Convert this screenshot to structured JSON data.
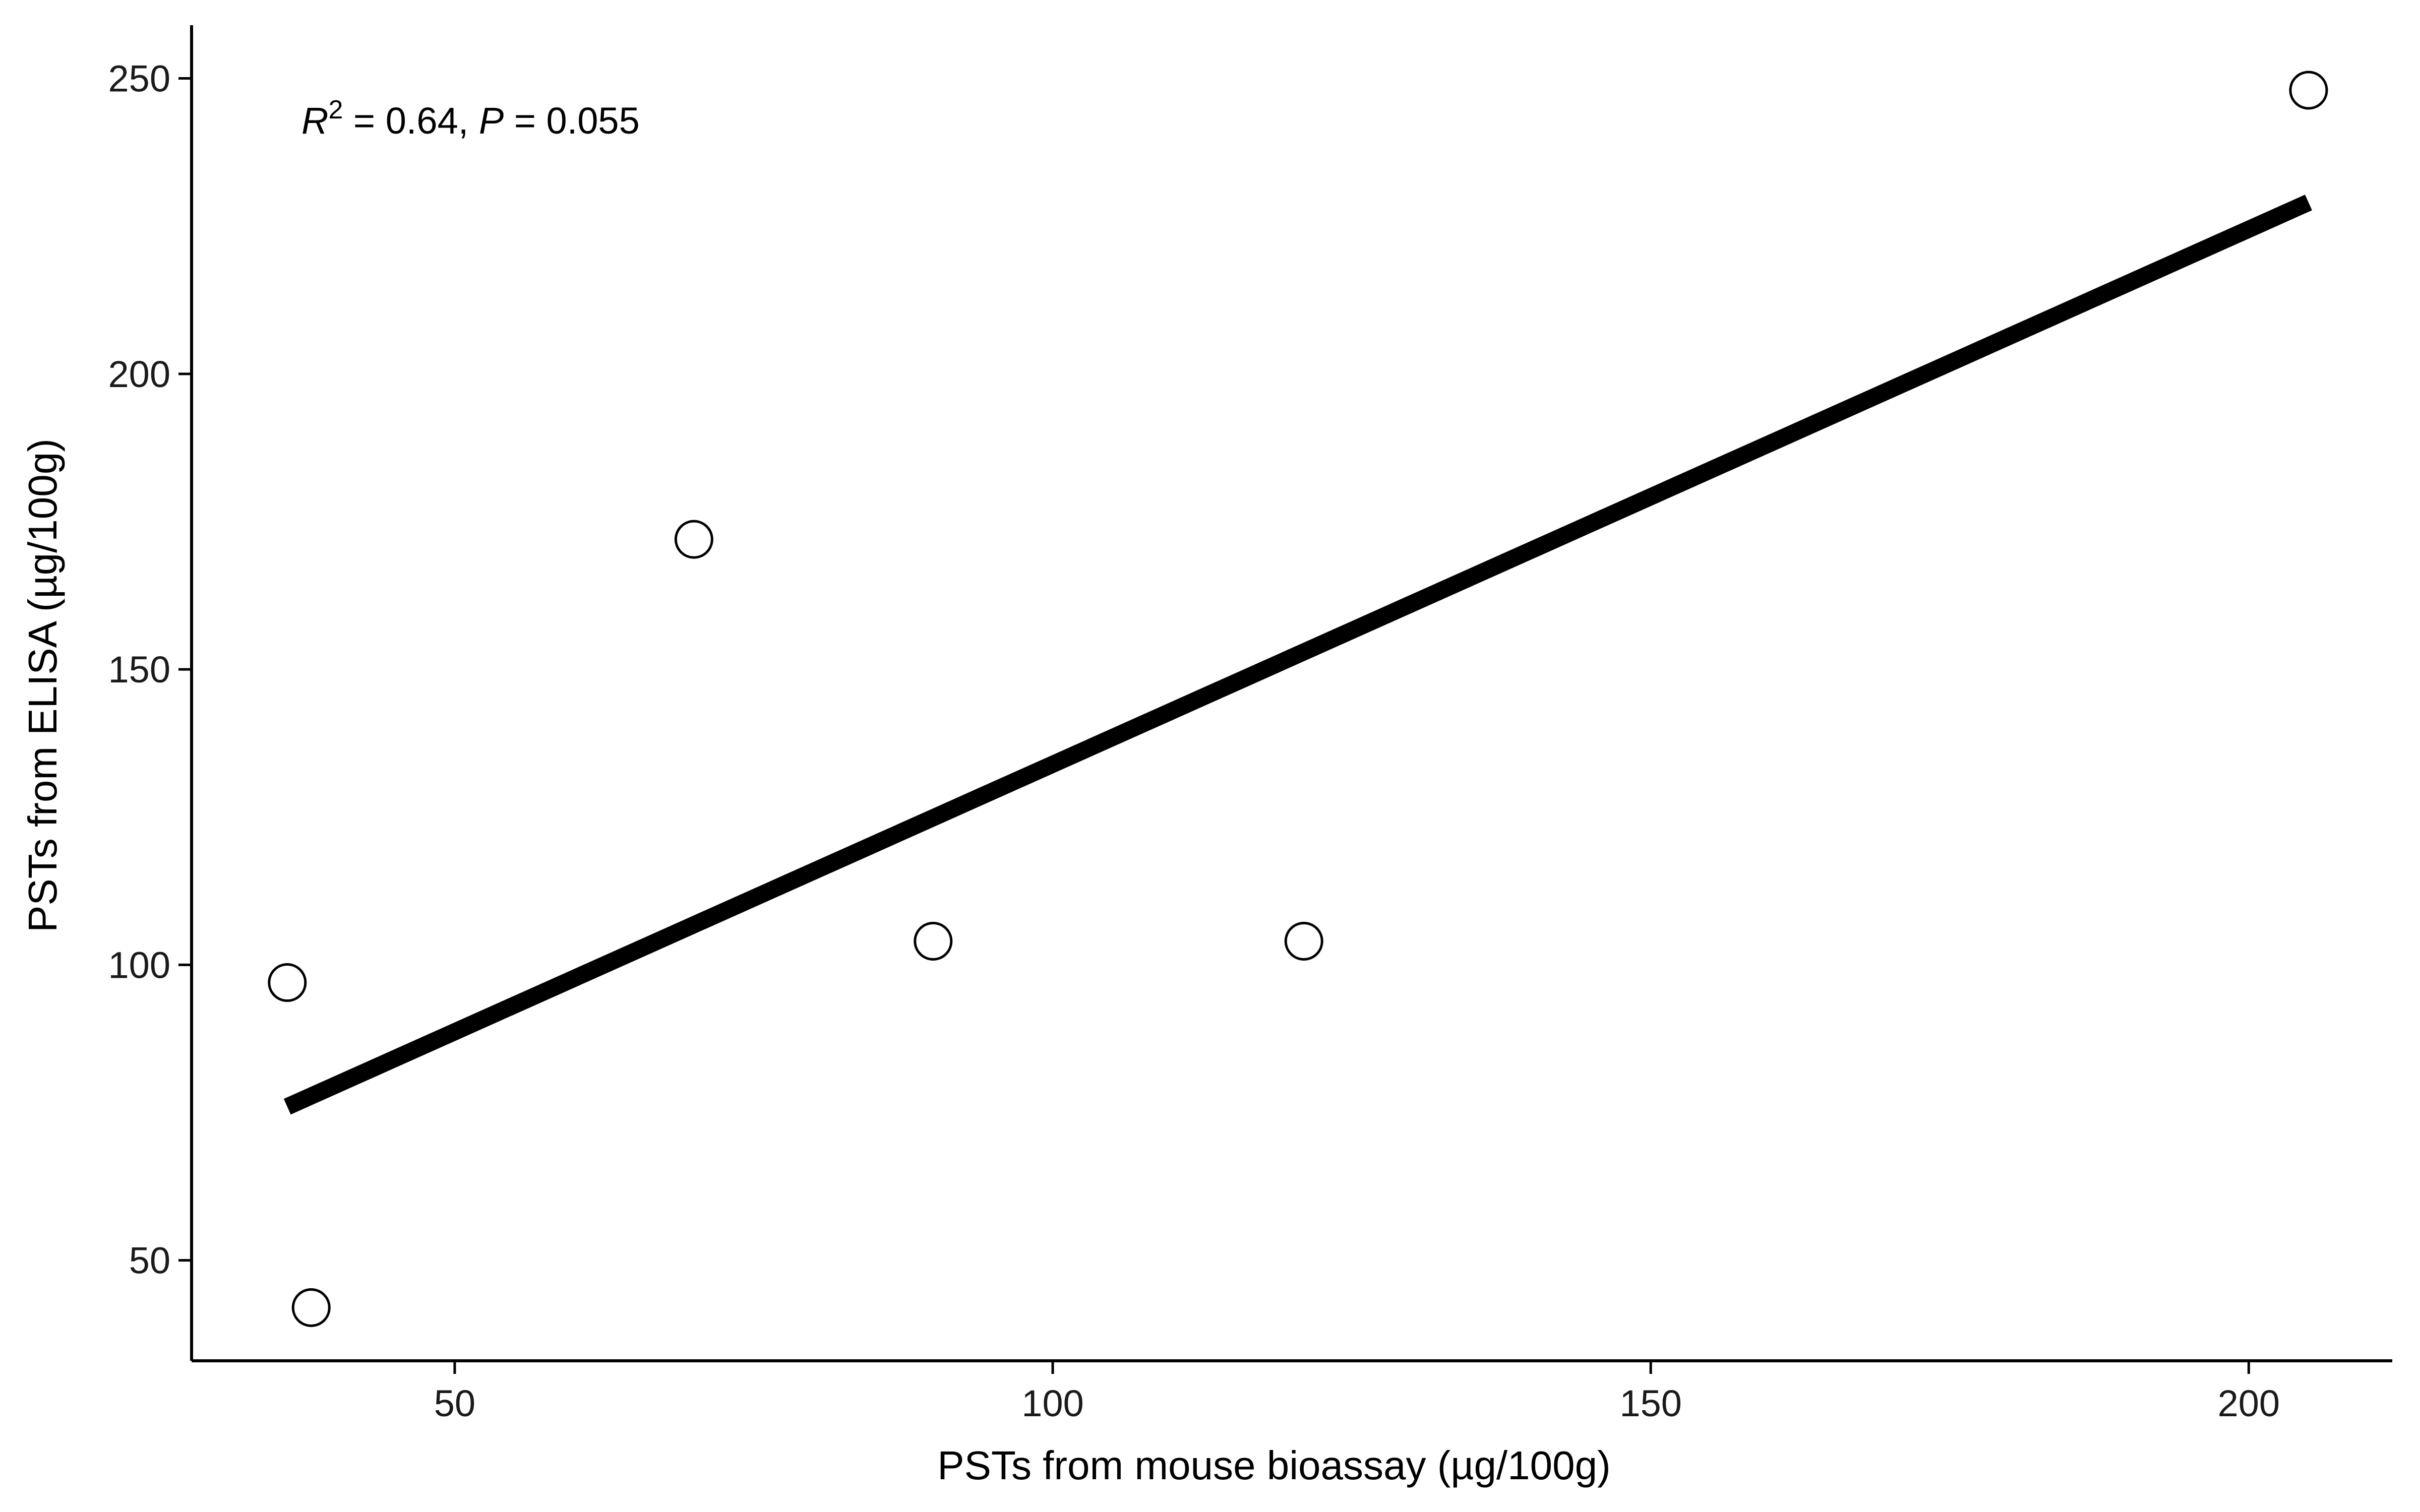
{
  "chart_data": {
    "type": "scatter",
    "xlabel": "PSTs from mouse bioassay (µg/100g)",
    "ylabel": "PSTs from ELISA (µg/100g)",
    "xlim": [
      28,
      212
    ],
    "ylim": [
      33,
      259
    ],
    "x_ticks": [
      50,
      100,
      150,
      200
    ],
    "y_ticks": [
      50,
      100,
      150,
      200,
      250
    ],
    "grid": false,
    "legend": "none",
    "points": [
      {
        "x": 36,
        "y": 97
      },
      {
        "x": 38,
        "y": 42
      },
      {
        "x": 70,
        "y": 172
      },
      {
        "x": 90,
        "y": 104
      },
      {
        "x": 121,
        "y": 104
      },
      {
        "x": 205,
        "y": 248
      }
    ],
    "fit_line": {
      "x": [
        36,
        205
      ],
      "y": [
        76,
        229
      ]
    },
    "annotation": {
      "r_symbol": "R",
      "r_exponent": "2",
      "r_value": " = 0.64, ",
      "p_symbol": "P",
      "p_value": " = 0.055"
    }
  }
}
